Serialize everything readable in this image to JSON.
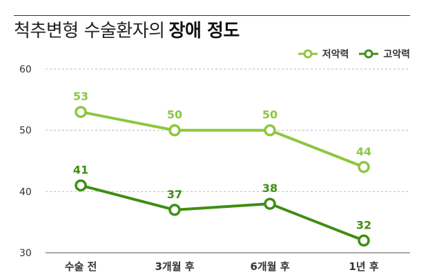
{
  "title": {
    "plain": "척추변형 수술환자의",
    "bold": "장애 정도"
  },
  "colors": {
    "low": "#8DC63F",
    "high": "#3E8E13",
    "grid": "#bbbbbb",
    "axis": "#555555"
  },
  "chart_data": {
    "type": "line",
    "title": "척추변형 수술환자의 장애 정도",
    "categories": [
      "수술 전",
      "3개월 후",
      "6개월 후",
      "1년 후"
    ],
    "series": [
      {
        "name": "저악력",
        "values": [
          53,
          50,
          50,
          44
        ]
      },
      {
        "name": "고악력",
        "values": [
          41,
          37,
          38,
          32
        ]
      }
    ],
    "ylim": [
      30,
      60
    ],
    "yticks": [
      30,
      40,
      50,
      60
    ],
    "grid": true,
    "legend": "top-right",
    "xlabel": "",
    "ylabel": ""
  }
}
